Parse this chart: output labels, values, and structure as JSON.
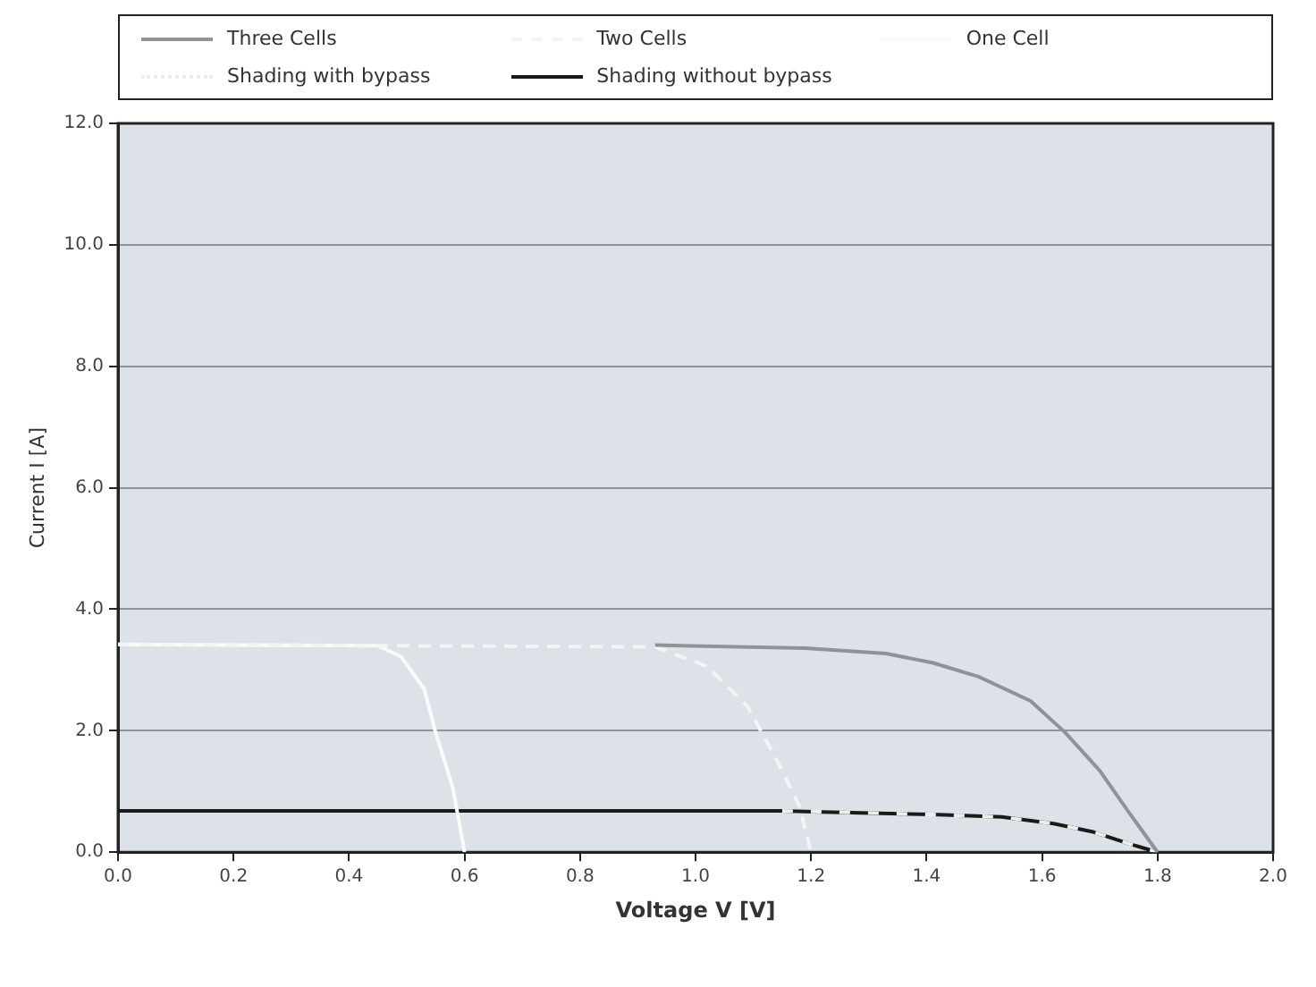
{
  "chart_data": {
    "type": "line",
    "xlabel": "Voltage V [V]",
    "ylabel": "Current I [A]",
    "xlim": [
      0,
      2
    ],
    "xticks": [
      {
        "value": 0,
        "label": "0.0"
      },
      0.2,
      0.4,
      0.6,
      0.8,
      {
        "value": 1,
        "label": "1.0"
      },
      1.2,
      1.4,
      1.6,
      1.8,
      {
        "value": 2,
        "label": "2.0"
      }
    ],
    "ylim": [
      0,
      12
    ],
    "yticks": [
      {
        "value": 0,
        "label": "0.0"
      },
      {
        "value": 2,
        "label": "2.0"
      },
      {
        "value": 4,
        "label": "4.0"
      },
      {
        "value": 6,
        "label": "6.0"
      },
      {
        "value": 8,
        "label": "8.0"
      },
      {
        "value": 10,
        "label": "10.0"
      },
      {
        "value": 12,
        "label": "12.0"
      }
    ],
    "grid": "y",
    "legend": "top",
    "marker": "none",
    "line_style": "solid",
    "series": [
      {
        "name": "Three Cells",
        "color": "#8e9398",
        "x": [
          0.93,
          1.19,
          1.33,
          1.41,
          1.49,
          1.58,
          1.64,
          1.7,
          1.75,
          1.8
        ],
        "values": [
          3.41,
          3.36,
          3.27,
          3.12,
          2.89,
          2.49,
          1.97,
          1.34,
          0.66,
          0
        ]
      },
      {
        "name": "Two Cells",
        "color": "#f4f4f4",
        "line_style": "dashed",
        "x": [
          0,
          0.93,
          1.02,
          1.09,
          1.14,
          1.18,
          1.2
        ],
        "values": [
          3.42,
          3.38,
          3.06,
          2.4,
          1.53,
          0.75,
          0
        ]
      },
      {
        "name": "One Cell",
        "color": "#fafafa",
        "x": [
          0,
          0.45,
          0.49,
          0.53,
          0.55,
          0.58,
          0.6
        ],
        "values": [
          3.42,
          3.4,
          3.22,
          2.69,
          1.97,
          1.05,
          0
        ]
      },
      {
        "name": "Shading with bypass",
        "color": "#eeeeee",
        "line_style": "dotted",
        "x": [
          1.15,
          1.41,
          1.53,
          1.62,
          1.69,
          1.75,
          1.8
        ],
        "values": [
          0.68,
          0.62,
          0.58,
          0.47,
          0.33,
          0.14,
          0
        ]
      },
      {
        "name": "Shading without bypass",
        "color": "#1a1a1a",
        "x": [
          0,
          1.15,
          1.22,
          1.41,
          1.53,
          1.62,
          1.69,
          1.75,
          1.8
        ],
        "values": [
          0.68,
          0.68,
          0.66,
          0.62,
          0.58,
          0.47,
          0.33,
          0.14,
          0
        ]
      }
    ]
  }
}
